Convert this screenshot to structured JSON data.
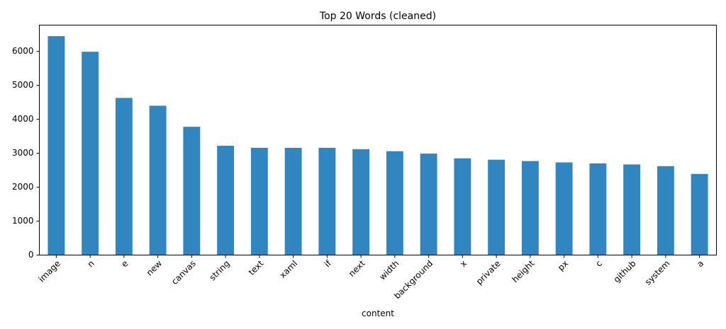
{
  "chart_data": {
    "type": "bar",
    "title": "Top 20 Words (cleaned)",
    "xlabel": "content",
    "ylabel": "",
    "categories": [
      "image",
      "n",
      "e",
      "new",
      "canvas",
      "string",
      "text",
      "xaml",
      "if",
      "next",
      "width",
      "background",
      "x",
      "private",
      "height",
      "px",
      "c",
      "github",
      "system",
      "a"
    ],
    "values": [
      6450,
      5990,
      4630,
      4400,
      3780,
      3220,
      3160,
      3160,
      3160,
      3120,
      3060,
      2990,
      2850,
      2810,
      2770,
      2730,
      2700,
      2670,
      2620,
      2390
    ],
    "ylim": [
      0,
      6775
    ],
    "yticks": [
      0,
      1000,
      2000,
      3000,
      4000,
      5000,
      6000
    ],
    "bar_color": "#3186bf",
    "grid": false,
    "legend": "none"
  }
}
